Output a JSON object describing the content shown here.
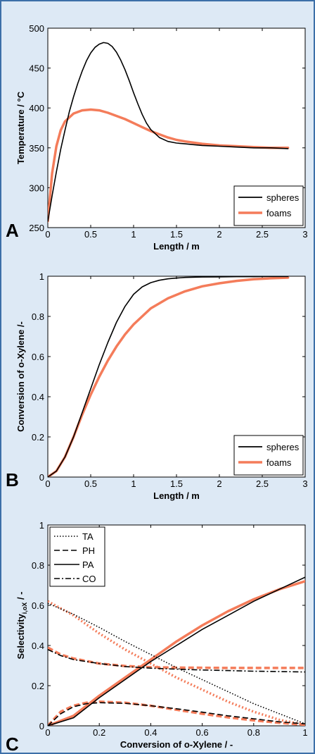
{
  "colors": {
    "background": "#dde9f5",
    "border": "#3c6fa8",
    "plot_bg": "#ffffff",
    "spheres": "#000000",
    "foams": "#f47c5a"
  },
  "panels": [
    "A",
    "B",
    "C"
  ],
  "chart_data": [
    {
      "type": "line",
      "panel": "A",
      "xlabel": "Length / m",
      "ylabel": "Temperature / °C",
      "xlim": [
        0,
        3
      ],
      "ylim": [
        250,
        500
      ],
      "xticks": [
        "0",
        "0.5",
        "1",
        "1.5",
        "2",
        "2.5",
        "3"
      ],
      "yticks": [
        "250",
        "300",
        "350",
        "400",
        "450",
        "500"
      ],
      "legend_position": "bottom-right",
      "series": [
        {
          "name": "spheres",
          "color": "#000000",
          "dash": "solid",
          "x": [
            0,
            0.05,
            0.1,
            0.15,
            0.2,
            0.25,
            0.3,
            0.35,
            0.4,
            0.45,
            0.5,
            0.55,
            0.6,
            0.65,
            0.7,
            0.75,
            0.8,
            0.85,
            0.9,
            0.95,
            1.0,
            1.05,
            1.1,
            1.15,
            1.2,
            1.3,
            1.4,
            1.5,
            1.6,
            1.7,
            1.8,
            2.0,
            2.2,
            2.4,
            2.6,
            2.8
          ],
          "y": [
            258,
            290,
            320,
            348,
            372,
            395,
            414,
            431,
            446,
            459,
            469,
            476,
            480,
            482,
            481,
            477,
            470,
            460,
            448,
            434,
            419,
            405,
            392,
            381,
            373,
            363,
            358,
            356,
            355,
            354,
            353,
            352,
            351,
            350,
            350,
            349
          ]
        },
        {
          "name": "foams",
          "color": "#f47c5a",
          "dash": "solid",
          "x": [
            0,
            0.05,
            0.1,
            0.15,
            0.2,
            0.3,
            0.4,
            0.5,
            0.6,
            0.7,
            0.8,
            0.9,
            1.0,
            1.1,
            1.2,
            1.3,
            1.4,
            1.5,
            1.6,
            1.8,
            2.0,
            2.2,
            2.4,
            2.6,
            2.8
          ],
          "y": [
            258,
            318,
            352,
            372,
            383,
            393,
            397,
            398,
            397,
            394,
            390,
            386,
            381,
            376,
            371,
            367,
            363,
            360,
            358,
            355,
            353,
            352,
            351,
            350,
            350
          ]
        }
      ]
    },
    {
      "type": "line",
      "panel": "B",
      "xlabel": "Length / m",
      "ylabel": "Conversion of o-Xylene /-",
      "xlim": [
        0,
        3
      ],
      "ylim": [
        0,
        1
      ],
      "xticks": [
        "0",
        "0.5",
        "1",
        "1.5",
        "2",
        "2.5",
        "3"
      ],
      "yticks": [
        "0",
        "0.2",
        "0.4",
        "0.6",
        "0.8",
        "1"
      ],
      "legend_position": "bottom-right",
      "series": [
        {
          "name": "spheres",
          "color": "#000000",
          "dash": "solid",
          "x": [
            0,
            0.1,
            0.2,
            0.3,
            0.4,
            0.5,
            0.6,
            0.7,
            0.8,
            0.9,
            1.0,
            1.1,
            1.2,
            1.3,
            1.4,
            1.5,
            1.6,
            1.8,
            2.0,
            2.2,
            2.4,
            2.6,
            2.8
          ],
          "y": [
            0,
            0.03,
            0.1,
            0.2,
            0.32,
            0.44,
            0.56,
            0.67,
            0.77,
            0.85,
            0.91,
            0.947,
            0.968,
            0.98,
            0.987,
            0.991,
            0.994,
            0.996,
            0.997,
            0.998,
            0.998,
            0.999,
            0.999
          ]
        },
        {
          "name": "foams",
          "color": "#f47c5a",
          "dash": "solid",
          "x": [
            0,
            0.1,
            0.2,
            0.3,
            0.4,
            0.5,
            0.6,
            0.7,
            0.8,
            0.9,
            1.0,
            1.2,
            1.4,
            1.6,
            1.8,
            2.0,
            2.2,
            2.4,
            2.6,
            2.8
          ],
          "y": [
            0,
            0.03,
            0.1,
            0.2,
            0.31,
            0.41,
            0.5,
            0.58,
            0.65,
            0.71,
            0.76,
            0.84,
            0.89,
            0.925,
            0.95,
            0.965,
            0.977,
            0.985,
            0.99,
            0.993
          ]
        }
      ]
    },
    {
      "type": "line",
      "panel": "C",
      "xlabel": "Conversion of o-Xylene / -",
      "ylabel_main": "Selectivity",
      "ylabel_sub": "i,oX",
      "ylabel_tail": " / -",
      "xlim": [
        0,
        1
      ],
      "ylim": [
        0,
        1
      ],
      "xticks": [
        "0",
        "0.2",
        "0.4",
        "0.6",
        "0.8",
        "1"
      ],
      "yticks": [
        "0",
        "0.2",
        "0.4",
        "0.6",
        "0.8",
        "1"
      ],
      "legend_position": "top-left",
      "series": [
        {
          "name": "TA",
          "color": "#000000",
          "dash": "dotted",
          "x": [
            0,
            0.1,
            0.2,
            0.3,
            0.4,
            0.5,
            0.6,
            0.7,
            0.8,
            0.9,
            1.0
          ],
          "y": [
            0.61,
            0.555,
            0.49,
            0.42,
            0.355,
            0.29,
            0.23,
            0.17,
            0.11,
            0.06,
            0.01
          ]
        },
        {
          "name": "TA foams",
          "color": "#f47c5a",
          "dash": "dotted",
          "x": [
            0,
            0.1,
            0.2,
            0.3,
            0.4,
            0.5,
            0.6,
            0.7,
            0.8,
            0.9,
            1.0
          ],
          "y": [
            0.62,
            0.55,
            0.46,
            0.38,
            0.31,
            0.24,
            0.18,
            0.12,
            0.07,
            0.03,
            0.005
          ]
        },
        {
          "name": "PH",
          "color": "#000000",
          "dash": "dashed",
          "x": [
            0,
            0.05,
            0.1,
            0.15,
            0.2,
            0.3,
            0.4,
            0.5,
            0.6,
            0.7,
            0.8,
            0.9,
            1.0
          ],
          "y": [
            0,
            0.06,
            0.095,
            0.11,
            0.115,
            0.112,
            0.1,
            0.085,
            0.068,
            0.05,
            0.035,
            0.02,
            0.01
          ]
        },
        {
          "name": "PH foams",
          "color": "#f47c5a",
          "dash": "dashed",
          "x": [
            0,
            0.05,
            0.1,
            0.15,
            0.2,
            0.3,
            0.4,
            0.5,
            0.6,
            0.7,
            0.8,
            0.9,
            1.0
          ],
          "y": [
            0,
            0.07,
            0.1,
            0.115,
            0.12,
            0.115,
            0.1,
            0.08,
            0.06,
            0.042,
            0.027,
            0.015,
            0.005
          ]
        },
        {
          "name": "PA",
          "color": "#000000",
          "dash": "solid",
          "x": [
            0,
            0.1,
            0.2,
            0.3,
            0.4,
            0.5,
            0.6,
            0.7,
            0.8,
            0.9,
            1.0
          ],
          "y": [
            0,
            0.04,
            0.14,
            0.23,
            0.32,
            0.4,
            0.48,
            0.55,
            0.62,
            0.68,
            0.74
          ]
        },
        {
          "name": "PA foams",
          "color": "#f47c5a",
          "dash": "solid",
          "x": [
            0,
            0.1,
            0.2,
            0.3,
            0.4,
            0.5,
            0.6,
            0.7,
            0.8,
            0.9,
            1.0
          ],
          "y": [
            0,
            0.05,
            0.15,
            0.24,
            0.33,
            0.42,
            0.5,
            0.57,
            0.63,
            0.68,
            0.72
          ]
        },
        {
          "name": "CO",
          "color": "#000000",
          "dash": "dashdot",
          "x": [
            0,
            0.05,
            0.1,
            0.2,
            0.3,
            0.4,
            0.5,
            0.6,
            0.7,
            0.8,
            0.9,
            1.0
          ],
          "y": [
            0.38,
            0.35,
            0.33,
            0.31,
            0.295,
            0.287,
            0.282,
            0.278,
            0.275,
            0.272,
            0.27,
            0.268
          ]
        },
        {
          "name": "CO foams",
          "color": "#f47c5a",
          "dash": "dashed",
          "x": [
            0,
            0.05,
            0.1,
            0.2,
            0.3,
            0.4,
            0.5,
            0.6,
            0.7,
            0.8,
            0.9,
            1.0
          ],
          "y": [
            0.39,
            0.355,
            0.335,
            0.31,
            0.298,
            0.292,
            0.29,
            0.289,
            0.288,
            0.288,
            0.288,
            0.288
          ]
        }
      ],
      "legend": [
        {
          "name": "TA",
          "dash": "dotted"
        },
        {
          "name": "PH",
          "dash": "dashed"
        },
        {
          "name": "PA",
          "dash": "solid"
        },
        {
          "name": "CO",
          "dash": "dashdot"
        }
      ]
    }
  ]
}
